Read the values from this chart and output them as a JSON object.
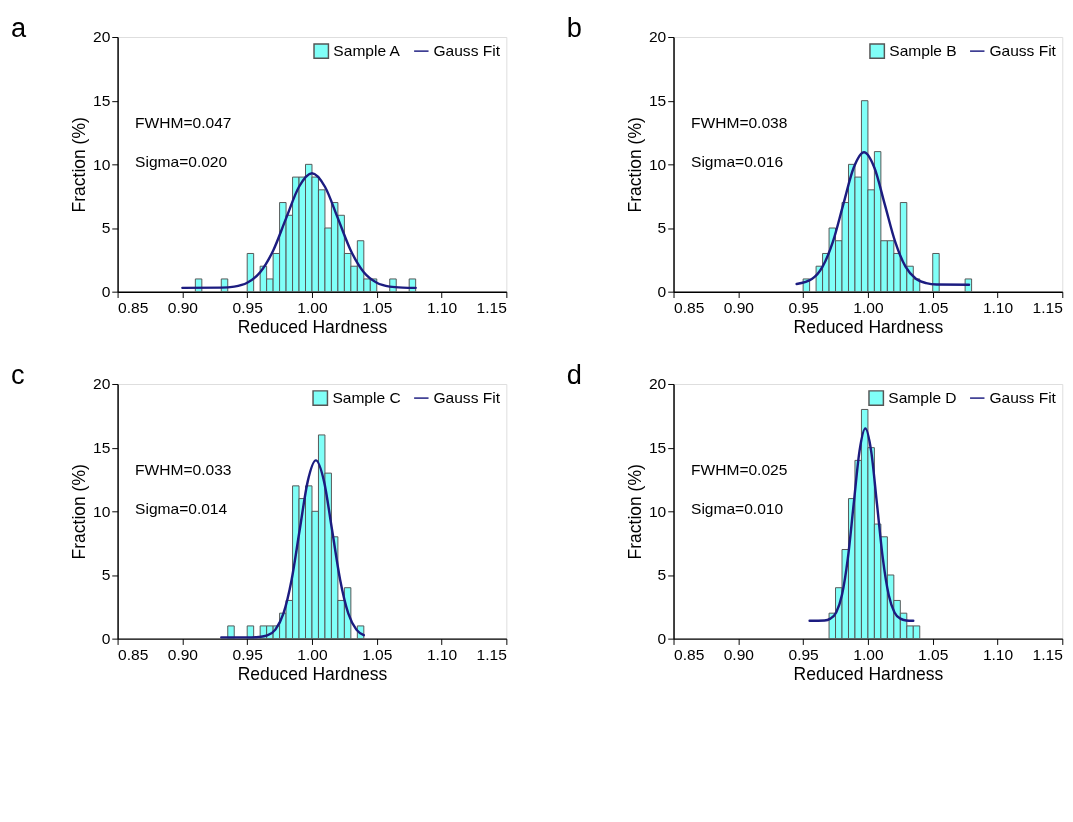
{
  "chart_data": [
    {
      "type": "histogram",
      "title": "a",
      "xlabel": "Reduced Hardness",
      "ylabel": "Fraction (%)",
      "legend": "top right",
      "annotations": [
        "FWHM=0.047",
        "Sigma=0.020"
      ],
      "xlim": [
        0.85,
        1.15
      ],
      "xticks": [
        {
          "value": 0.85,
          "label": "0.85"
        },
        {
          "value": 0.9,
          "label": "0.90"
        },
        {
          "value": 0.95,
          "label": "0.95"
        },
        {
          "value": 1.0,
          "label": "1.00"
        },
        {
          "value": 1.05,
          "label": "1.05"
        },
        {
          "value": 1.1,
          "label": "1.10"
        },
        {
          "value": 1.15,
          "label": "1.15"
        }
      ],
      "ylim": [
        0,
        20
      ],
      "yticks": [
        0,
        5,
        10,
        15,
        20
      ],
      "bins": [
        0.91,
        0.915,
        0.92,
        0.925,
        0.93,
        0.935,
        0.94,
        0.945,
        0.95,
        0.955,
        0.96,
        0.965,
        0.97,
        0.975,
        0.98,
        0.985,
        0.99,
        0.995,
        1.0,
        1.005,
        1.01,
        1.015,
        1.02,
        1.025,
        1.03,
        1.035,
        1.04,
        1.045,
        1.05,
        1.055,
        1.06,
        1.065,
        1.07,
        1.075,
        1.08
      ],
      "series": [
        {
          "name": "Sample A",
          "type": "histogram",
          "color": "#80fff8",
          "values": [
            1,
            0,
            0,
            0,
            1,
            0,
            0,
            0,
            3,
            0,
            2,
            1,
            3,
            7,
            6,
            9,
            9,
            10,
            9,
            8,
            5,
            7,
            6,
            3,
            2,
            4,
            1,
            1,
            0,
            0,
            1,
            0,
            0,
            1
          ]
        },
        {
          "name": "Gauss Fit",
          "type": "line",
          "color": "#1c1c80",
          "x": [
            0.9,
            0.93,
            0.94,
            0.95,
            0.96,
            0.97,
            0.98,
            0.99,
            1.0,
            1.01,
            1.02,
            1.03,
            1.04,
            1.05,
            1.06,
            1.07,
            1.08
          ],
          "values": [
            0.3,
            0.32,
            0.4,
            0.7,
            1.52,
            3.22,
            5.76,
            8.24,
            9.3,
            8.24,
            5.76,
            3.22,
            1.52,
            0.7,
            0.4,
            0.32,
            0.3
          ]
        }
      ]
    },
    {
      "type": "histogram",
      "title": "b",
      "xlabel": "Reduced Hardness",
      "ylabel": "Fraction (%)",
      "legend": "top right",
      "annotations": [
        "FWHM=0.038",
        "Sigma=0.016"
      ],
      "xlim": [
        0.85,
        1.15
      ],
      "xticks": [
        {
          "value": 0.85,
          "label": "0.85"
        },
        {
          "value": 0.9,
          "label": "0.90"
        },
        {
          "value": 0.95,
          "label": "0.95"
        },
        {
          "value": 1.0,
          "label": "1.00"
        },
        {
          "value": 1.05,
          "label": "1.05"
        },
        {
          "value": 1.1,
          "label": "1.10"
        },
        {
          "value": 1.15,
          "label": "1.15"
        }
      ],
      "ylim": [
        0,
        20
      ],
      "yticks": [
        0,
        5,
        10,
        15,
        20
      ],
      "bins": [
        0.95,
        0.955,
        0.96,
        0.965,
        0.97,
        0.975,
        0.98,
        0.985,
        0.99,
        0.995,
        1.0,
        1.005,
        1.01,
        1.015,
        1.02,
        1.025,
        1.03,
        1.035,
        1.04,
        1.045,
        1.05,
        1.055,
        1.06,
        1.065,
        1.07,
        1.075,
        1.08
      ],
      "series": [
        {
          "name": "Sample B",
          "type": "histogram",
          "color": "#80fff8",
          "values": [
            1,
            0,
            2,
            3,
            5,
            4,
            7,
            10,
            9,
            15,
            8,
            11,
            4,
            4,
            3,
            7,
            2,
            1,
            0,
            0,
            3,
            0,
            0,
            0,
            0,
            1
          ]
        },
        {
          "name": "Gauss Fit",
          "type": "line",
          "color": "#1c1c80",
          "x": [
            0.945,
            0.957,
            0.965,
            0.973,
            0.981,
            0.989,
            0.997,
            1.005,
            1.013,
            1.021,
            1.029,
            1.037,
            1.045,
            1.053,
            1.078
          ],
          "values": [
            0.6,
            1.01,
            1.96,
            3.93,
            6.86,
            9.73,
            10.95,
            9.73,
            6.86,
            3.93,
            1.96,
            1.01,
            0.67,
            0.57,
            0.55
          ]
        }
      ]
    },
    {
      "type": "histogram",
      "title": "c",
      "xlabel": "Reduced Hardness",
      "ylabel": "Fraction (%)",
      "legend": "top right",
      "annotations": [
        "FWHM=0.033",
        "Sigma=0.014"
      ],
      "xlim": [
        0.85,
        1.15
      ],
      "xticks": [
        {
          "value": 0.85,
          "label": "0.85"
        },
        {
          "value": 0.9,
          "label": "0.90"
        },
        {
          "value": 0.95,
          "label": "0.95"
        },
        {
          "value": 1.0,
          "label": "1.00"
        },
        {
          "value": 1.05,
          "label": "1.05"
        },
        {
          "value": 1.1,
          "label": "1.10"
        },
        {
          "value": 1.15,
          "label": "1.15"
        }
      ],
      "ylim": [
        0,
        20
      ],
      "yticks": [
        0,
        5,
        10,
        15,
        20
      ],
      "bins": [
        0.935,
        0.94,
        0.945,
        0.95,
        0.955,
        0.96,
        0.965,
        0.97,
        0.975,
        0.98,
        0.985,
        0.99,
        0.995,
        1.0,
        1.005,
        1.01,
        1.015,
        1.02,
        1.025,
        1.03,
        1.035,
        1.04
      ],
      "series": [
        {
          "name": "Sample C",
          "type": "histogram",
          "color": "#80fff8",
          "values": [
            1,
            0,
            0,
            1,
            0,
            1,
            1,
            1,
            2,
            3,
            12,
            11,
            12,
            10,
            16,
            13,
            8,
            3,
            4,
            0,
            1
          ]
        },
        {
          "name": "Gauss Fit",
          "type": "line",
          "color": "#1c1c80",
          "x": [
            0.93,
            0.953,
            0.959,
            0.9655,
            0.97175,
            0.978,
            0.98425,
            0.9905,
            0.99675,
            1.003,
            1.00925,
            1.0155,
            1.02175,
            1.028,
            1.03425,
            1.04
          ],
          "values": [
            0.1,
            0.1,
            0.13,
            0.25,
            0.71,
            1.98,
            4.61,
            8.53,
            12.37,
            14.0,
            12.37,
            8.53,
            4.61,
            1.98,
            0.71,
            0.27
          ]
        }
      ]
    },
    {
      "type": "histogram",
      "title": "d",
      "xlabel": "Reduced Hardness",
      "ylabel": "Fraction (%)",
      "legend": "top right",
      "annotations": [
        "FWHM=0.025",
        "Sigma=0.010"
      ],
      "xlim": [
        0.85,
        1.15
      ],
      "xticks": [
        {
          "value": 0.85,
          "label": "0.85"
        },
        {
          "value": 0.9,
          "label": "0.90"
        },
        {
          "value": 0.95,
          "label": "0.95"
        },
        {
          "value": 1.0,
          "label": "1.00"
        },
        {
          "value": 1.05,
          "label": "1.05"
        },
        {
          "value": 1.1,
          "label": "1.10"
        },
        {
          "value": 1.15,
          "label": "1.15"
        }
      ],
      "ylim": [
        0,
        20
      ],
      "yticks": [
        0,
        5,
        10,
        15,
        20
      ],
      "bins": [
        0.97,
        0.975,
        0.98,
        0.985,
        0.99,
        0.995,
        1.0,
        1.005,
        1.01,
        1.015,
        1.02,
        1.025,
        1.03,
        1.035,
        1.04
      ],
      "series": [
        {
          "name": "Sample D",
          "type": "histogram",
          "color": "#80fff8",
          "values": [
            2,
            4,
            7,
            11,
            14,
            18,
            15,
            9,
            8,
            5,
            3,
            2,
            1,
            1
          ]
        },
        {
          "name": "Gauss Fit",
          "type": "line",
          "color": "#1c1c80",
          "x": [
            0.955,
            0.9665,
            0.971,
            0.9755,
            0.98,
            0.9845,
            0.989,
            0.9935,
            0.998,
            1.0025,
            1.007,
            1.0115,
            1.016,
            1.0205,
            1.025,
            1.0295,
            1.035
          ],
          "values": [
            1.4,
            1.43,
            1.57,
            2.06,
            3.44,
            6.3,
            10.56,
            14.73,
            16.5,
            14.73,
            10.56,
            6.3,
            3.44,
            2.06,
            1.57,
            1.43,
            1.4
          ]
        }
      ]
    }
  ]
}
